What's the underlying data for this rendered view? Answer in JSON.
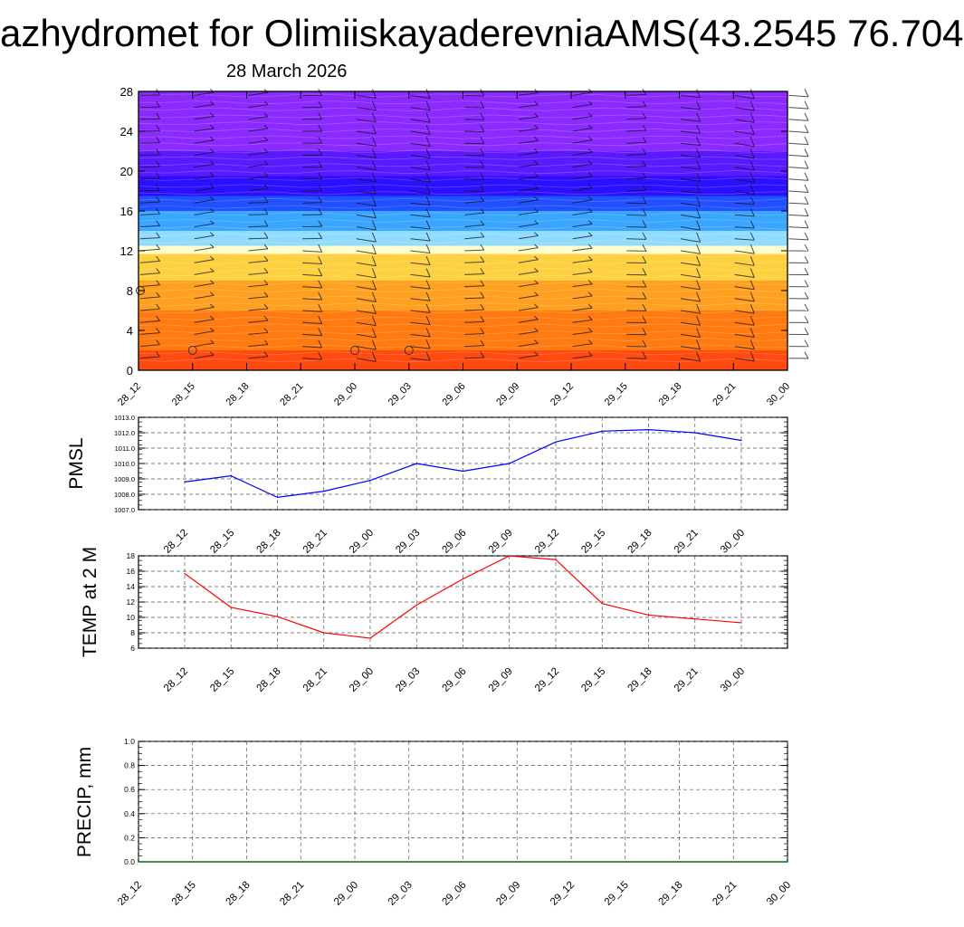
{
  "title": "azhydromet for OlimiiskayaderevniaAMS(43.2545 76.704",
  "subtitle": "28 March 2026",
  "chart_data": [
    {
      "type": "heatmap",
      "title": "",
      "ylabel": "",
      "ylim": [
        0,
        28
      ],
      "yticks": [
        "0",
        "4",
        "8",
        "12",
        "16",
        "20",
        "24",
        "28"
      ],
      "x_tick_labels": [
        "28_12",
        "28_15",
        "28_18",
        "28_21",
        "29_00",
        "29_03",
        "29_06",
        "29_09",
        "29_12",
        "29_15",
        "29_18",
        "29_21",
        "30_00"
      ],
      "color_bands": [
        {
          "from": 0,
          "to": 2,
          "color": "#ff4a10"
        },
        {
          "from": 2,
          "to": 6,
          "color": "#ff7a10"
        },
        {
          "from": 6,
          "to": 9,
          "color": "#ffa020"
        },
        {
          "from": 9,
          "to": 11.7,
          "color": "#ffd040"
        },
        {
          "from": 11.7,
          "to": 12.5,
          "color": "#ffffcc"
        },
        {
          "from": 12.5,
          "to": 14,
          "color": "#8fdcff"
        },
        {
          "from": 14,
          "to": 16,
          "color": "#3aa6ff"
        },
        {
          "from": 16,
          "to": 17.5,
          "color": "#2050ff"
        },
        {
          "from": 17.5,
          "to": 19.5,
          "color": "#2a10ff"
        },
        {
          "from": 19.5,
          "to": 22,
          "color": "#5a1aff"
        },
        {
          "from": 22,
          "to": 28,
          "color": "#8a2aff"
        }
      ],
      "wind_barbs": "present",
      "calm_markers": [
        {
          "x": "28_12",
          "level": 8
        },
        {
          "x": "28_15",
          "level": 2
        },
        {
          "x": "29_00",
          "level": 2
        },
        {
          "x": "29_03",
          "level": 2
        }
      ]
    },
    {
      "type": "line",
      "ylabel": "PMSL",
      "ylim": [
        1007.0,
        1013.0
      ],
      "yticks": [
        "1007.0",
        "1008.0",
        "1009.0",
        "1010.0",
        "1011.0",
        "1012.0",
        "1013.0"
      ],
      "x": [
        "28_12",
        "28_15",
        "28_18",
        "28_21",
        "29_00",
        "29_03",
        "29_06",
        "29_09",
        "29_12",
        "29_15",
        "29_18",
        "29_21",
        "30_00"
      ],
      "series": [
        {
          "values": [
            1008.8,
            1009.2,
            1007.8,
            1008.2,
            1008.9,
            1010.0,
            1009.5,
            1010.0,
            1011.4,
            1012.1,
            1012.2,
            1012.0,
            1011.5
          ]
        }
      ],
      "color": "#0000ff",
      "grid": true
    },
    {
      "type": "line",
      "ylabel": "TEMP at 2 M",
      "ylim": [
        6,
        18
      ],
      "yticks": [
        "6",
        "8",
        "10",
        "12",
        "14",
        "16",
        "18"
      ],
      "x": [
        "28_12",
        "28_15",
        "28_18",
        "28_21",
        "29_00",
        "29_03",
        "29_06",
        "29_09",
        "29_12",
        "29_15",
        "29_18",
        "29_21",
        "30_00"
      ],
      "series": [
        {
          "values": [
            15.7,
            11.3,
            10.1,
            8.0,
            7.3,
            11.6,
            15.0,
            18.0,
            17.5,
            11.8,
            10.3,
            9.8,
            9.3
          ]
        }
      ],
      "color": "#ff0000",
      "grid": true
    },
    {
      "type": "line",
      "ylabel": "PRECIP, mm",
      "ylim": [
        0.0,
        1.0
      ],
      "yticks": [
        "0.0",
        "0.2",
        "0.4",
        "0.6",
        "0.8",
        "1.0"
      ],
      "x": [
        "28_12",
        "28_15",
        "28_18",
        "28_21",
        "29_00",
        "29_03",
        "29_06",
        "29_09",
        "29_12",
        "29_15",
        "29_18",
        "29_21",
        "30_00"
      ],
      "series": [
        {
          "values": [
            0,
            0,
            0,
            0,
            0,
            0,
            0,
            0,
            0,
            0,
            0,
            0,
            0
          ]
        }
      ],
      "color": "#006400",
      "grid": true
    }
  ]
}
